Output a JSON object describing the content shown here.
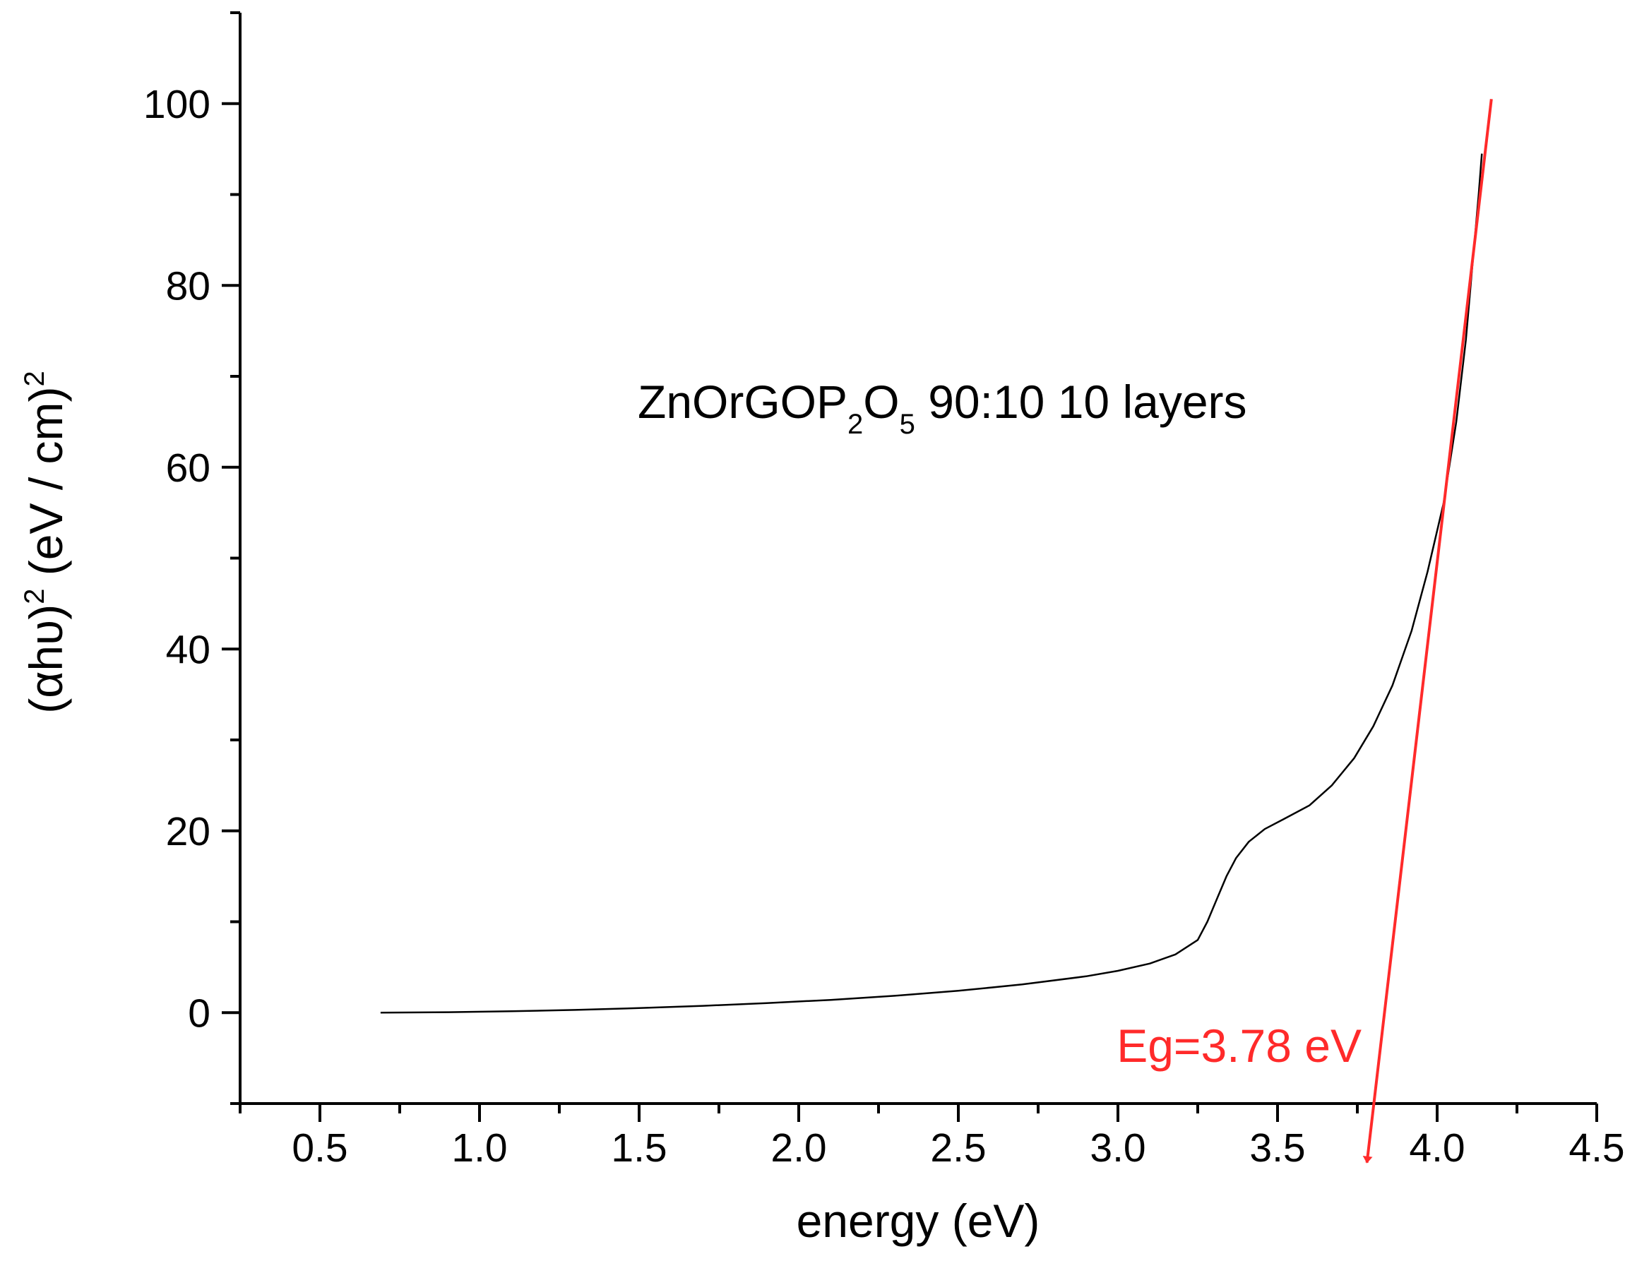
{
  "chart_data": {
    "type": "line",
    "xlabel": "energy (eV)",
    "ylabel": {
      "prefix": "(αhυ)",
      "sup1": "2",
      "middle": " (eV / cm)",
      "sup2": "2"
    },
    "xlim": [
      0.25,
      4.5
    ],
    "ylim": [
      -10,
      110
    ],
    "x_ticks": [
      0.5,
      1.0,
      1.5,
      2.0,
      2.5,
      3.0,
      3.5,
      4.0,
      4.5
    ],
    "x_tick_labels": [
      "0.5",
      "1.0",
      "1.5",
      "2.0",
      "2.5",
      "3.0",
      "3.5",
      "4.0",
      "4.5"
    ],
    "y_ticks": [
      0,
      20,
      40,
      60,
      80,
      100
    ],
    "y_tick_labels": [
      "0",
      "20",
      "40",
      "60",
      "80",
      "100"
    ],
    "grid": false,
    "annotation": {
      "base": "ZnOrGOP",
      "sub1": "2",
      "mid": "O",
      "sub2": "5",
      "rest": " 90:10 10 layers"
    },
    "series": [
      {
        "color": "#000000",
        "points": [
          [
            0.69,
            0.0
          ],
          [
            0.9,
            0.05
          ],
          [
            1.1,
            0.15
          ],
          [
            1.3,
            0.3
          ],
          [
            1.5,
            0.5
          ],
          [
            1.7,
            0.75
          ],
          [
            1.9,
            1.05
          ],
          [
            2.1,
            1.4
          ],
          [
            2.3,
            1.85
          ],
          [
            2.5,
            2.4
          ],
          [
            2.7,
            3.1
          ],
          [
            2.9,
            4.0
          ],
          [
            3.0,
            4.6
          ],
          [
            3.1,
            5.4
          ],
          [
            3.18,
            6.4
          ],
          [
            3.25,
            8.0
          ],
          [
            3.28,
            10.0
          ],
          [
            3.31,
            12.5
          ],
          [
            3.34,
            15.0
          ],
          [
            3.37,
            17.0
          ],
          [
            3.41,
            18.8
          ],
          [
            3.46,
            20.2
          ],
          [
            3.52,
            21.3
          ],
          [
            3.6,
            22.8
          ],
          [
            3.67,
            25.0
          ],
          [
            3.74,
            28.0
          ],
          [
            3.8,
            31.5
          ],
          [
            3.86,
            36.0
          ],
          [
            3.92,
            42.0
          ],
          [
            3.97,
            48.5
          ],
          [
            4.02,
            56.0
          ],
          [
            4.06,
            65.0
          ],
          [
            4.09,
            74.0
          ],
          [
            4.11,
            82.0
          ],
          [
            4.13,
            90.0
          ],
          [
            4.14,
            94.5
          ]
        ]
      },
      {
        "color": "#ff2a2a",
        "style": "arrow",
        "points": [
          [
            4.17,
            100.5
          ],
          [
            3.78,
            -16.5
          ]
        ]
      }
    ],
    "band_gap": {
      "label": "Eg=3.78 eV",
      "value": 3.78,
      "color": "#ff2a2a"
    }
  }
}
